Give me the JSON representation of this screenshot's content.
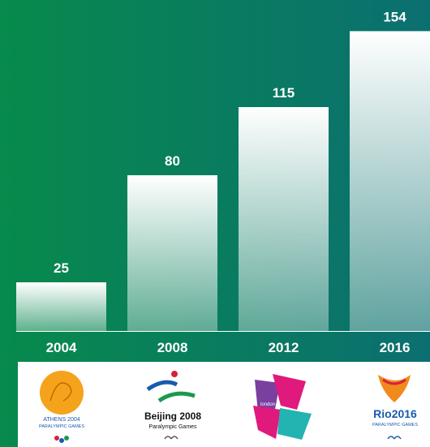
{
  "chart_data": {
    "type": "bar",
    "categories": [
      "2004",
      "2008",
      "2012",
      "2016"
    ],
    "values": [
      25,
      80,
      115,
      154
    ],
    "ylim": [
      0,
      170
    ],
    "color": "#ffffff"
  },
  "logos": [
    {
      "lines": [
        "ATHENS 2004",
        "PARALYMPIC GAMES"
      ]
    },
    {
      "lines": [
        "Beijing 2008",
        "Paralympic Games"
      ]
    },
    {
      "lines": [
        "london"
      ]
    },
    {
      "lines": [
        "Rio2016",
        "PARALYMPIC GAMES"
      ]
    }
  ]
}
